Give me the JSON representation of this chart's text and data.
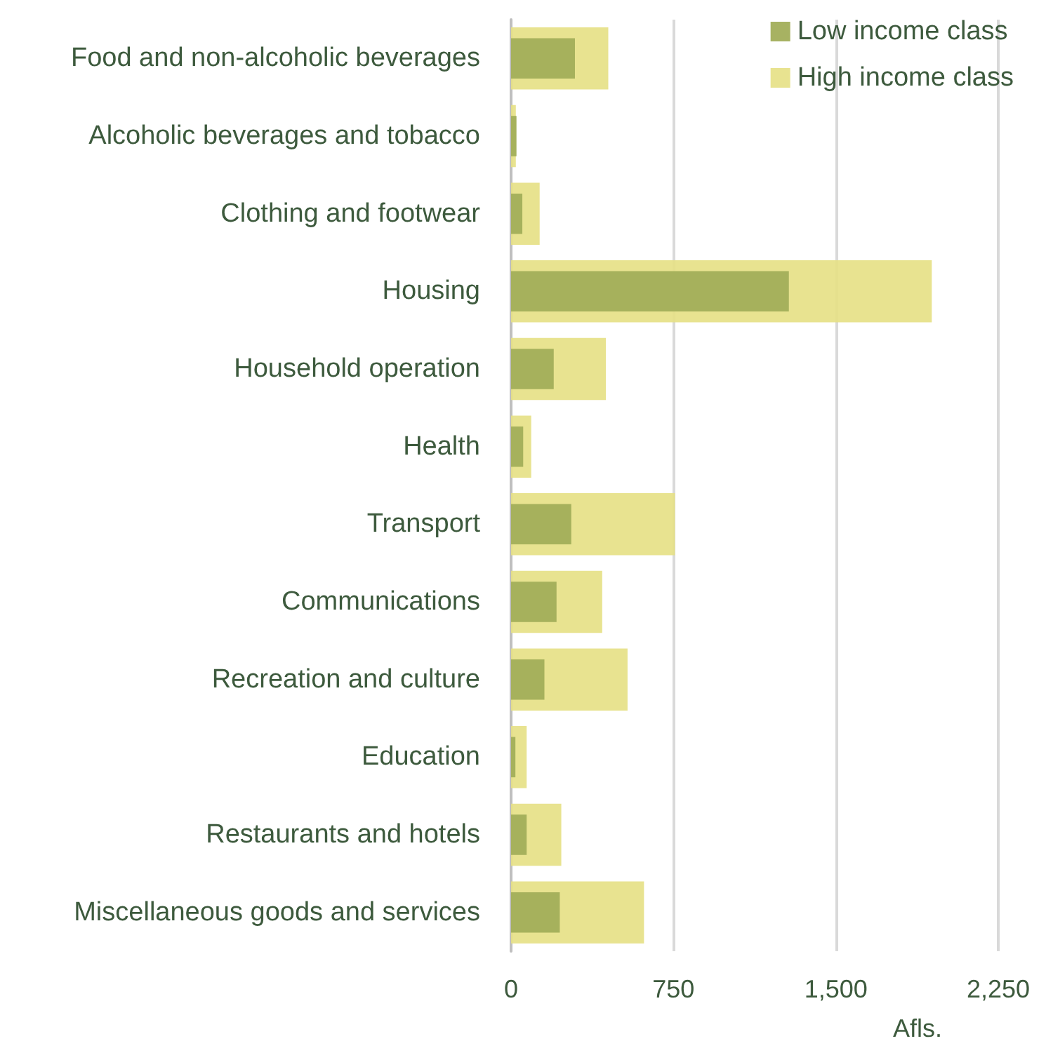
{
  "chart_data": {
    "type": "bar",
    "orientation": "horizontal",
    "xlabel": "Afls.",
    "categories": [
      "Food and non-alcoholic beverages",
      "Alcoholic beverages and tobacco",
      "Clothing and footwear",
      "Housing",
      "Household operation",
      "Health",
      "Transport",
      "Communications",
      "Recreation and culture",
      "Education",
      "Restaurants and hotels",
      "Miscellaneous goods and services"
    ],
    "series": [
      {
        "name": "Low income class",
        "color": "#a2ae5a",
        "values": [
          295,
          25,
          52,
          1283,
          197,
          56,
          278,
          210,
          154,
          20,
          72,
          225
        ]
      },
      {
        "name": "High income class",
        "color": "#e6e084",
        "values": [
          449,
          22,
          132,
          1943,
          438,
          93,
          757,
          421,
          538,
          72,
          232,
          614
        ]
      }
    ],
    "xlim": [
      0,
      2250
    ],
    "xticks": [
      0,
      750,
      {
        "value": 1500,
        "label": "1,500"
      },
      {
        "value": 2250,
        "label": "2,250"
      }
    ],
    "grid": "x",
    "legend": "top right"
  }
}
